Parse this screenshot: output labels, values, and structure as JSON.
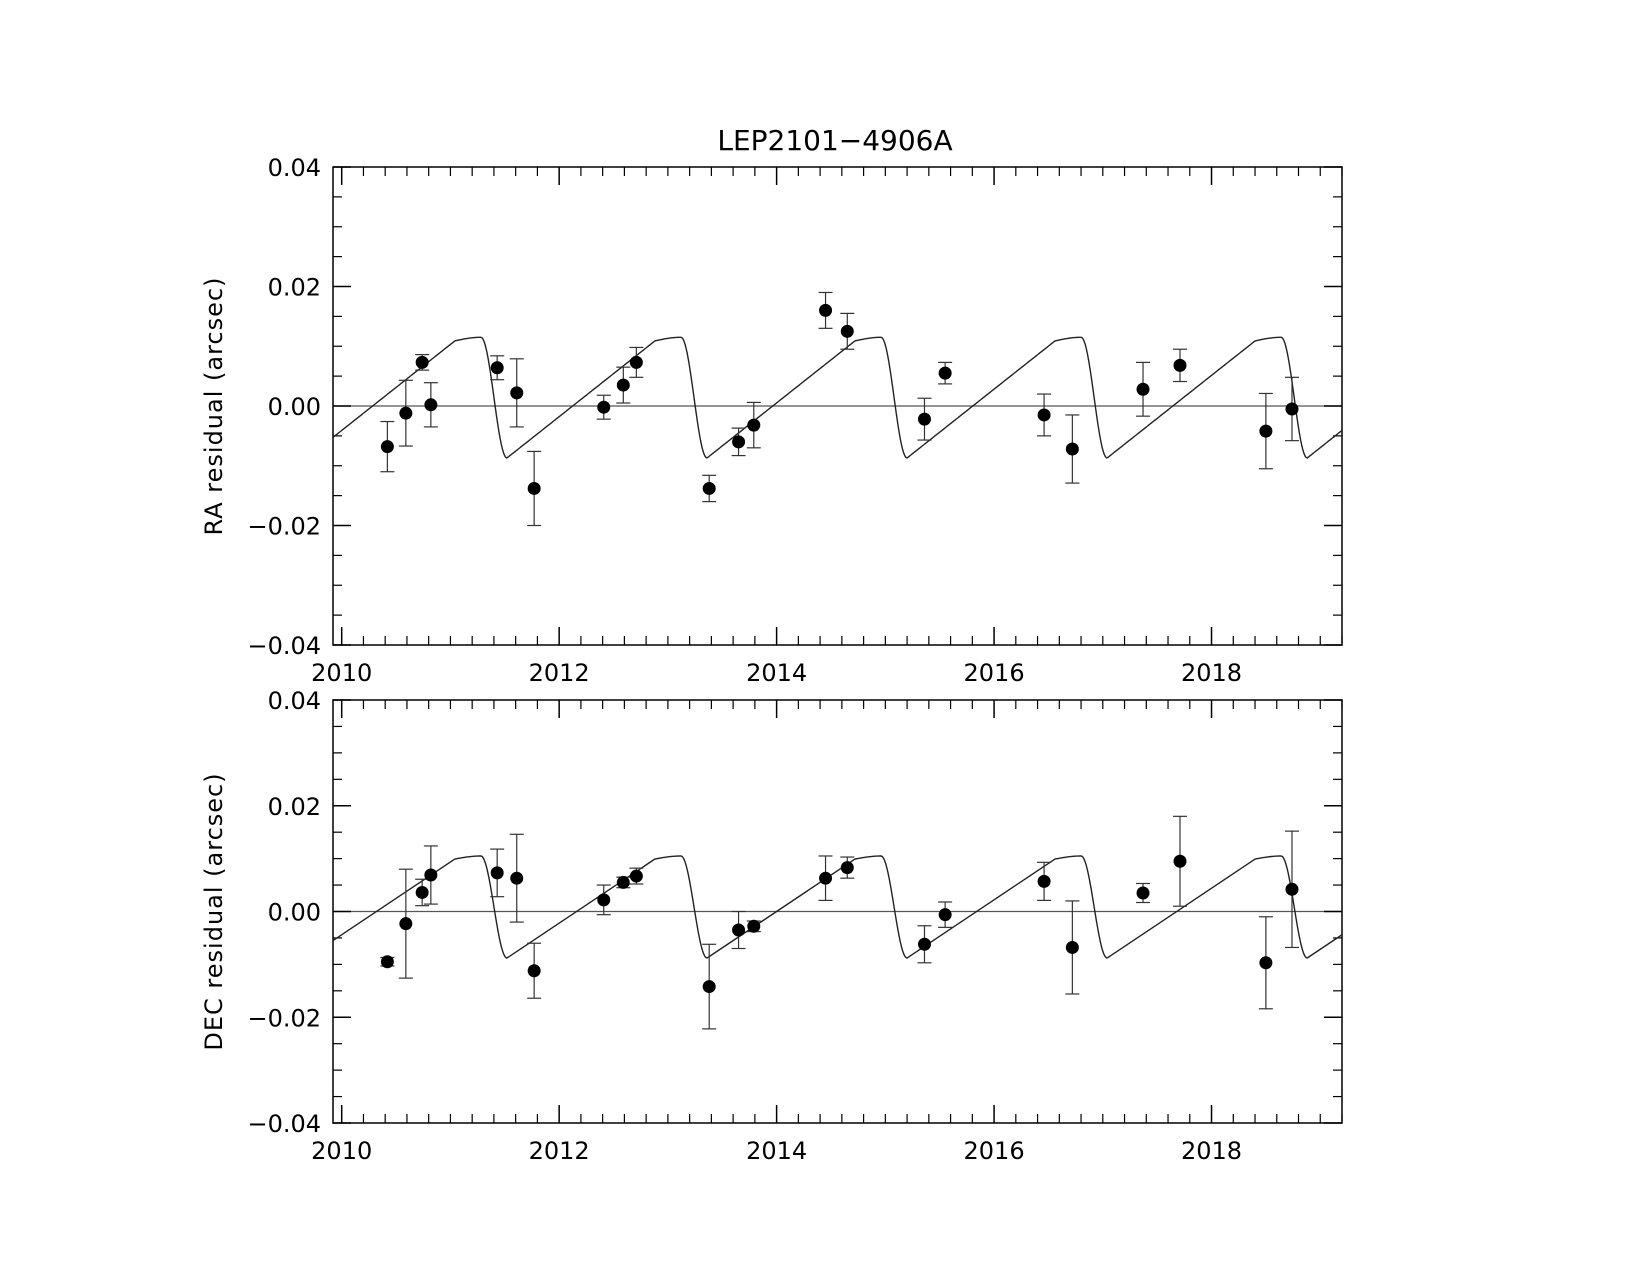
{
  "chart_data": {
    "type": "scatter",
    "title": "LEP2101−4906A",
    "panels": [
      {
        "ylabel": "RA residual (arcsec)",
        "xlim": [
          2009.92,
          2019.2
        ],
        "ylim": [
          -0.04,
          0.04
        ],
        "yticks": [
          -0.04,
          -0.02,
          0.0,
          0.02,
          0.04
        ],
        "ytick_labels": [
          "−0.04",
          "−0.02",
          "0.00",
          "0.02",
          "0.04"
        ],
        "xticks": [
          2010,
          2012,
          2014,
          2016,
          2018
        ],
        "xtick_labels": [
          "2010",
          "2012",
          "2014",
          "2016",
          "2018"
        ],
        "zero_line": true,
        "model_curve": {
          "period": 1.84,
          "phase_ref": 2011.52,
          "rise_fraction": 0.87,
          "min": -0.0087,
          "max": 0.0115
        },
        "points": [
          {
            "x": 2010.42,
            "y": -0.0068,
            "err": 0.0042
          },
          {
            "x": 2010.59,
            "y": -0.0012,
            "err": 0.0055
          },
          {
            "x": 2010.74,
            "y": 0.0073,
            "err": 0.0013
          },
          {
            "x": 2010.82,
            "y": 0.0002,
            "err": 0.0037
          },
          {
            "x": 2011.43,
            "y": 0.0064,
            "err": 0.002
          },
          {
            "x": 2011.61,
            "y": 0.0022,
            "err": 0.0057
          },
          {
            "x": 2011.77,
            "y": -0.0138,
            "err": 0.0062
          },
          {
            "x": 2012.41,
            "y": -0.0002,
            "err": 0.002
          },
          {
            "x": 2012.59,
            "y": 0.0035,
            "err": 0.003
          },
          {
            "x": 2012.71,
            "y": 0.0073,
            "err": 0.0025
          },
          {
            "x": 2013.38,
            "y": -0.0138,
            "err": 0.0022
          },
          {
            "x": 2013.65,
            "y": -0.006,
            "err": 0.0023
          },
          {
            "x": 2013.79,
            "y": -0.0032,
            "err": 0.0038
          },
          {
            "x": 2014.45,
            "y": 0.016,
            "err": 0.003
          },
          {
            "x": 2014.65,
            "y": 0.0125,
            "err": 0.003
          },
          {
            "x": 2015.36,
            "y": -0.0022,
            "err": 0.0035
          },
          {
            "x": 2015.55,
            "y": 0.0055,
            "err": 0.0018
          },
          {
            "x": 2016.46,
            "y": -0.0015,
            "err": 0.0035
          },
          {
            "x": 2016.72,
            "y": -0.0072,
            "err": 0.0057
          },
          {
            "x": 2017.37,
            "y": 0.0028,
            "err": 0.0045
          },
          {
            "x": 2017.71,
            "y": 0.0068,
            "err": 0.0027
          },
          {
            "x": 2018.5,
            "y": -0.0042,
            "err": 0.0063
          },
          {
            "x": 2018.74,
            "y": -0.0005,
            "err": 0.0053
          }
        ]
      },
      {
        "ylabel": "DEC residual (arcsec)",
        "xlim": [
          2009.92,
          2019.2
        ],
        "ylim": [
          -0.04,
          0.04
        ],
        "yticks": [
          -0.04,
          -0.02,
          0.0,
          0.02,
          0.04
        ],
        "ytick_labels": [
          "−0.04",
          "−0.02",
          "0.00",
          "0.02",
          "0.04"
        ],
        "xticks": [
          2010,
          2012,
          2014,
          2016,
          2018
        ],
        "xtick_labels": [
          "2010",
          "2012",
          "2014",
          "2016",
          "2018"
        ],
        "zero_line": true,
        "model_curve": {
          "period": 1.84,
          "phase_ref": 2011.52,
          "rise_fraction": 0.87,
          "min": -0.0088,
          "max": 0.0105
        },
        "points": [
          {
            "x": 2010.42,
            "y": -0.0095,
            "err": 0.0008
          },
          {
            "x": 2010.59,
            "y": -0.0023,
            "err": 0.0103
          },
          {
            "x": 2010.74,
            "y": 0.0036,
            "err": 0.0025
          },
          {
            "x": 2010.82,
            "y": 0.0069,
            "err": 0.0055
          },
          {
            "x": 2011.43,
            "y": 0.0073,
            "err": 0.0045
          },
          {
            "x": 2011.61,
            "y": 0.0063,
            "err": 0.0083
          },
          {
            "x": 2011.77,
            "y": -0.0112,
            "err": 0.0052
          },
          {
            "x": 2012.41,
            "y": 0.0022,
            "err": 0.0028
          },
          {
            "x": 2012.59,
            "y": 0.0055,
            "err": 0.001
          },
          {
            "x": 2012.71,
            "y": 0.0067,
            "err": 0.0015
          },
          {
            "x": 2013.38,
            "y": -0.0142,
            "err": 0.008
          },
          {
            "x": 2013.65,
            "y": -0.0035,
            "err": 0.0035
          },
          {
            "x": 2013.79,
            "y": -0.0028,
            "err": 0.001
          },
          {
            "x": 2014.45,
            "y": 0.0063,
            "err": 0.0042
          },
          {
            "x": 2014.65,
            "y": 0.0083,
            "err": 0.002
          },
          {
            "x": 2015.36,
            "y": -0.0062,
            "err": 0.0035
          },
          {
            "x": 2015.55,
            "y": -0.0006,
            "err": 0.0024
          },
          {
            "x": 2016.46,
            "y": 0.0057,
            "err": 0.0036
          },
          {
            "x": 2016.72,
            "y": -0.0068,
            "err": 0.0088
          },
          {
            "x": 2017.37,
            "y": 0.0035,
            "err": 0.0018
          },
          {
            "x": 2017.71,
            "y": 0.0095,
            "err": 0.0085
          },
          {
            "x": 2018.5,
            "y": -0.0097,
            "err": 0.0087
          },
          {
            "x": 2018.74,
            "y": 0.0042,
            "err": 0.011
          }
        ]
      }
    ]
  }
}
